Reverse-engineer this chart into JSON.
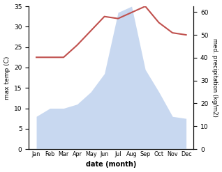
{
  "months": [
    "Jan",
    "Feb",
    "Mar",
    "Apr",
    "May",
    "Jun",
    "Jul",
    "Aug",
    "Sep",
    "Oct",
    "Nov",
    "Dec"
  ],
  "temp": [
    22.5,
    22.5,
    22.5,
    25.5,
    29.0,
    32.5,
    32.0,
    33.5,
    35.0,
    31.0,
    28.5,
    28.0
  ],
  "precip": [
    8.0,
    10.0,
    10.0,
    11.0,
    14.0,
    18.5,
    33.5,
    35.0,
    19.5,
    14.0,
    8.0,
    7.5
  ],
  "temp_color": "#c0504d",
  "precip_fill_color": "#c8d8f0",
  "ylim_temp": [
    0,
    35
  ],
  "ylim_precip": [
    0,
    62.5
  ],
  "yticks_temp": [
    0,
    5,
    10,
    15,
    20,
    25,
    30,
    35
  ],
  "yticks_precip": [
    0,
    10,
    20,
    30,
    40,
    50,
    60
  ],
  "ylabel_left": "max temp (C)",
  "ylabel_right": "med. precipitation (kg/m2)",
  "xlabel": "date (month)",
  "bg_color": "#ffffff"
}
